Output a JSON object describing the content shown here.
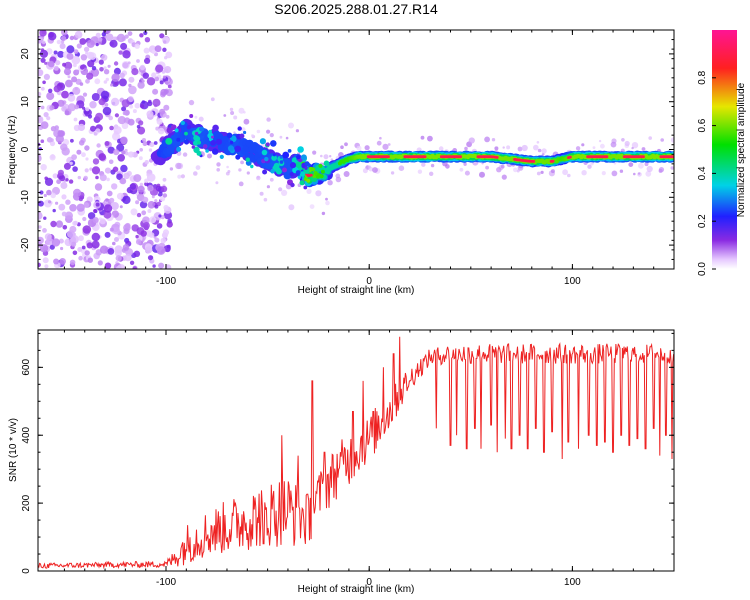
{
  "title": "S206.2025.288.01.27.R14",
  "colors": {
    "snr_line": "#ee2222",
    "axis": "#000000",
    "speckle": "#8a2be2"
  },
  "chart_data": [
    {
      "type": "heatmap",
      "id": "spectrogram",
      "xlabel": "Height of straight line (km)",
      "ylabel": "Frequency (Hz)",
      "xlim": [
        -163,
        150
      ],
      "ylim": [
        -25,
        25
      ],
      "x_ticks": [
        -100,
        0,
        100
      ],
      "x_tick_labels": [
        "-100",
        "0",
        "100"
      ],
      "y_ticks": [
        -20,
        -10,
        0,
        10,
        20
      ],
      "y_tick_labels": [
        "-20",
        "-10",
        "0",
        "10",
        "20"
      ],
      "noise_region_x": [
        -163,
        -100
      ],
      "ridge": {
        "x": [
          -105,
          -100,
          -95,
          -90,
          -85,
          -80,
          -75,
          -70,
          -65,
          -60,
          -55,
          -50,
          -45,
          -40,
          -35,
          -30,
          -25,
          -20,
          -15,
          -10,
          -5,
          0,
          10,
          20,
          30,
          40,
          50,
          60,
          70,
          80,
          90,
          95,
          100,
          110,
          120,
          130,
          140,
          150
        ],
        "frequency": [
          -2,
          0,
          2,
          4,
          3,
          2,
          2,
          1,
          1,
          0,
          -1,
          -2,
          -3,
          -4,
          -3,
          -5.5,
          -5,
          -4,
          -3,
          -2,
          -1.5,
          -1.5,
          -1.5,
          -1.5,
          -1.5,
          -1.5,
          -1.5,
          -1.5,
          -2,
          -2.5,
          -2.5,
          -2,
          -1.5,
          -1.5,
          -1.5,
          -1.5,
          -1.5,
          -1.5
        ],
        "amplitude": [
          0.2,
          0.3,
          0.35,
          0.3,
          0.4,
          0.35,
          0.3,
          0.3,
          0.35,
          0.3,
          0.3,
          0.35,
          0.4,
          0.35,
          0.4,
          0.9,
          0.6,
          0.5,
          0.55,
          0.6,
          0.9,
          0.9,
          0.9,
          0.95,
          0.95,
          0.9,
          0.95,
          0.95,
          0.9,
          0.85,
          0.85,
          0.6,
          0.95,
          0.95,
          0.9,
          0.95,
          0.95,
          0.95
        ]
      },
      "colorbar": {
        "label": "Normalized spectral amplitude",
        "range": [
          0,
          1
        ],
        "ticks": [
          0.0,
          0.2,
          0.4,
          0.6,
          0.8
        ],
        "tick_labels": [
          "0.0",
          "0.2",
          "0.4",
          "0.6",
          "0.8"
        ]
      }
    },
    {
      "type": "line",
      "id": "snr",
      "xlabel": "Height of straight line (km)",
      "ylabel": "SNR (10 * v/v)",
      "xlim": [
        -163,
        150
      ],
      "ylim": [
        0,
        710
      ],
      "x_ticks": [
        -100,
        0,
        100
      ],
      "x_tick_labels": [
        "-100",
        "0",
        "100"
      ],
      "y_ticks": [
        0,
        200,
        400,
        600
      ],
      "y_tick_labels": [
        "0",
        "200",
        "400",
        "600"
      ],
      "series": [
        {
          "name": "SNR",
          "envelope_x": [
            -163,
            -130,
            -100,
            -95,
            -90,
            -80,
            -70,
            -60,
            -50,
            -40,
            -30,
            -25,
            -20,
            -15,
            -10,
            -5,
            0,
            5,
            10,
            15,
            20,
            25,
            30,
            40,
            50,
            60,
            70,
            80,
            90,
            100,
            110,
            120,
            130,
            140,
            150
          ],
          "envelope_mean": [
            15,
            18,
            20,
            40,
            80,
            110,
            130,
            150,
            170,
            180,
            150,
            220,
            260,
            300,
            330,
            360,
            390,
            430,
            470,
            520,
            570,
            600,
            630,
            640,
            640,
            640,
            640,
            640,
            640,
            640,
            640,
            640,
            640,
            640,
            640
          ],
          "noise_amp": [
            8,
            8,
            10,
            30,
            60,
            70,
            80,
            90,
            100,
            110,
            80,
            70,
            80,
            80,
            80,
            70,
            70,
            70,
            60,
            50,
            40,
            30,
            25,
            30,
            30,
            30,
            30,
            30,
            30,
            30,
            30,
            30,
            30,
            30,
            30
          ],
          "dropouts": [
            [
              -52,
              80
            ],
            [
              -43,
              400
            ],
            [
              -35,
              340
            ],
            [
              -28,
              560
            ],
            [
              -22,
              350
            ],
            [
              -15,
              300
            ],
            [
              -8,
              470
            ],
            [
              -3,
              560
            ],
            [
              2,
              470
            ],
            [
              7,
              600
            ],
            [
              12,
              640
            ],
            [
              15,
              690
            ],
            [
              20,
              560
            ],
            [
              33,
              420
            ],
            [
              40,
              370
            ],
            [
              43,
              400
            ],
            [
              48,
              360
            ],
            [
              52,
              420
            ],
            [
              55,
              360
            ],
            [
              60,
              430
            ],
            [
              63,
              350
            ],
            [
              67,
              390
            ],
            [
              70,
              360
            ],
            [
              74,
              400
            ],
            [
              78,
              360
            ],
            [
              82,
              420
            ],
            [
              86,
              350
            ],
            [
              90,
              410
            ],
            [
              95,
              330
            ],
            [
              98,
              380
            ],
            [
              103,
              360
            ],
            [
              108,
              400
            ],
            [
              112,
              370
            ],
            [
              116,
              380
            ],
            [
              120,
              350
            ],
            [
              124,
              400
            ],
            [
              128,
              370
            ],
            [
              132,
              390
            ],
            [
              136,
              360
            ],
            [
              140,
              420
            ],
            [
              143,
              340
            ],
            [
              146,
              400
            ],
            [
              149,
              330
            ]
          ]
        }
      ]
    }
  ]
}
